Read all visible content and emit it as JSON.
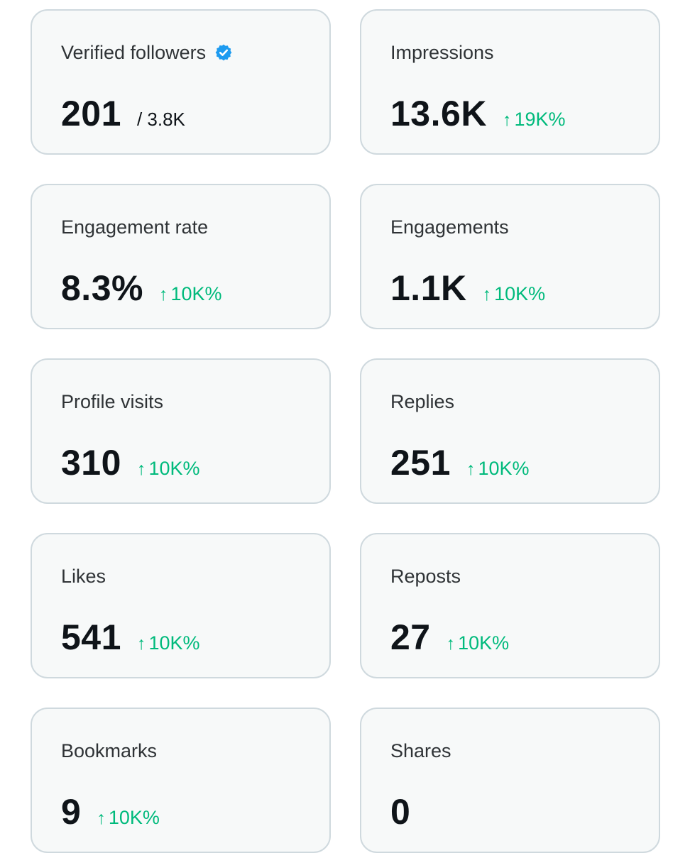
{
  "colors": {
    "card_background": "#f7f9f9",
    "card_border": "#cfd9de",
    "positive_change": "#00ba7c",
    "verified_badge": "#1d9bf0"
  },
  "cards": [
    {
      "label": "Verified followers",
      "value": "201",
      "secondary": "/ 3.8K",
      "icon": "verified-badge-icon"
    },
    {
      "label": "Impressions",
      "value": "13.6K",
      "arrow": "↑",
      "change": "19K%"
    },
    {
      "label": "Engagement rate",
      "value": "8.3%",
      "arrow": "↑",
      "change": "10K%"
    },
    {
      "label": "Engagements",
      "value": "1.1K",
      "arrow": "↑",
      "change": "10K%"
    },
    {
      "label": "Profile visits",
      "value": "310",
      "arrow": "↑",
      "change": "10K%"
    },
    {
      "label": "Replies",
      "value": "251",
      "arrow": "↑",
      "change": "10K%"
    },
    {
      "label": "Likes",
      "value": "541",
      "arrow": "↑",
      "change": "10K%"
    },
    {
      "label": "Reposts",
      "value": "27",
      "arrow": "↑",
      "change": "10K%"
    },
    {
      "label": "Bookmarks",
      "value": "9",
      "arrow": "↑",
      "change": "10K%"
    },
    {
      "label": "Shares",
      "value": "0"
    }
  ]
}
